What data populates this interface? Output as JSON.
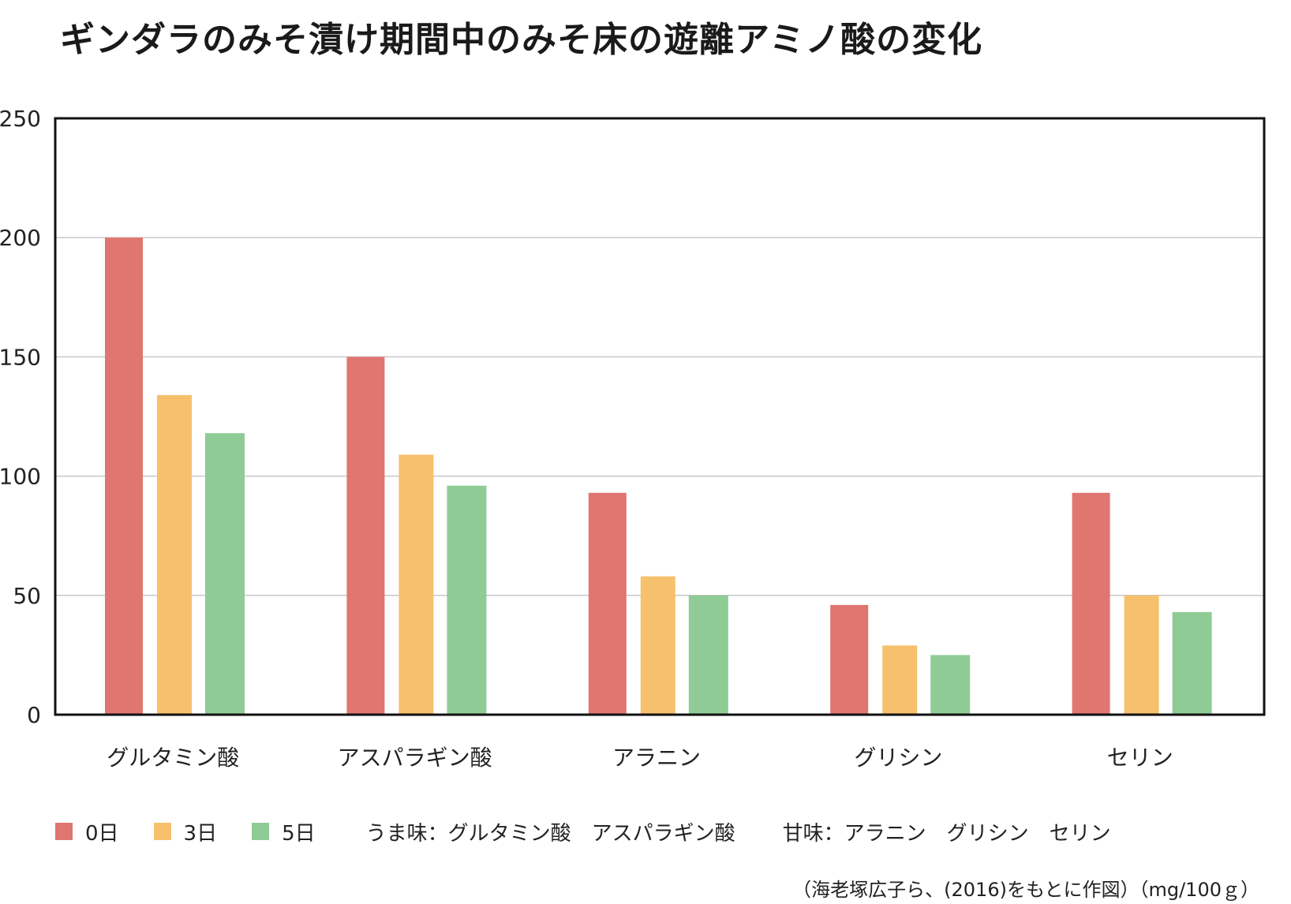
{
  "chart_data": {
    "type": "bar",
    "title": "ギンダラのみそ漬け期間中のみそ床の遊離アミノ酸の変化",
    "categories": [
      "グルタミン酸",
      "アスパラギン酸",
      "アラニン",
      "グリシン",
      "セリン"
    ],
    "series": [
      {
        "name": "0日",
        "color": "#df7670",
        "values": [
          200,
          150,
          93,
          46,
          93
        ]
      },
      {
        "name": "3日",
        "color": "#f6c06d",
        "values": [
          134,
          109,
          58,
          29,
          50
        ]
      },
      {
        "name": "5日",
        "color": "#8fcb95",
        "values": [
          118,
          96,
          50,
          25,
          43
        ]
      }
    ],
    "ylim": [
      0,
      250
    ],
    "yticks": [
      0,
      50,
      100,
      150,
      200,
      250
    ],
    "grid": true,
    "legend_position": "bottom-left"
  },
  "notes": {
    "umami": "うま味：グルタミン酸　アスパラギン酸",
    "sweet": "甘味：アラニン　グリシン　セリン",
    "source": "（海老塚広子ら、(2016)をもとに作図）（mg/100ｇ）"
  }
}
